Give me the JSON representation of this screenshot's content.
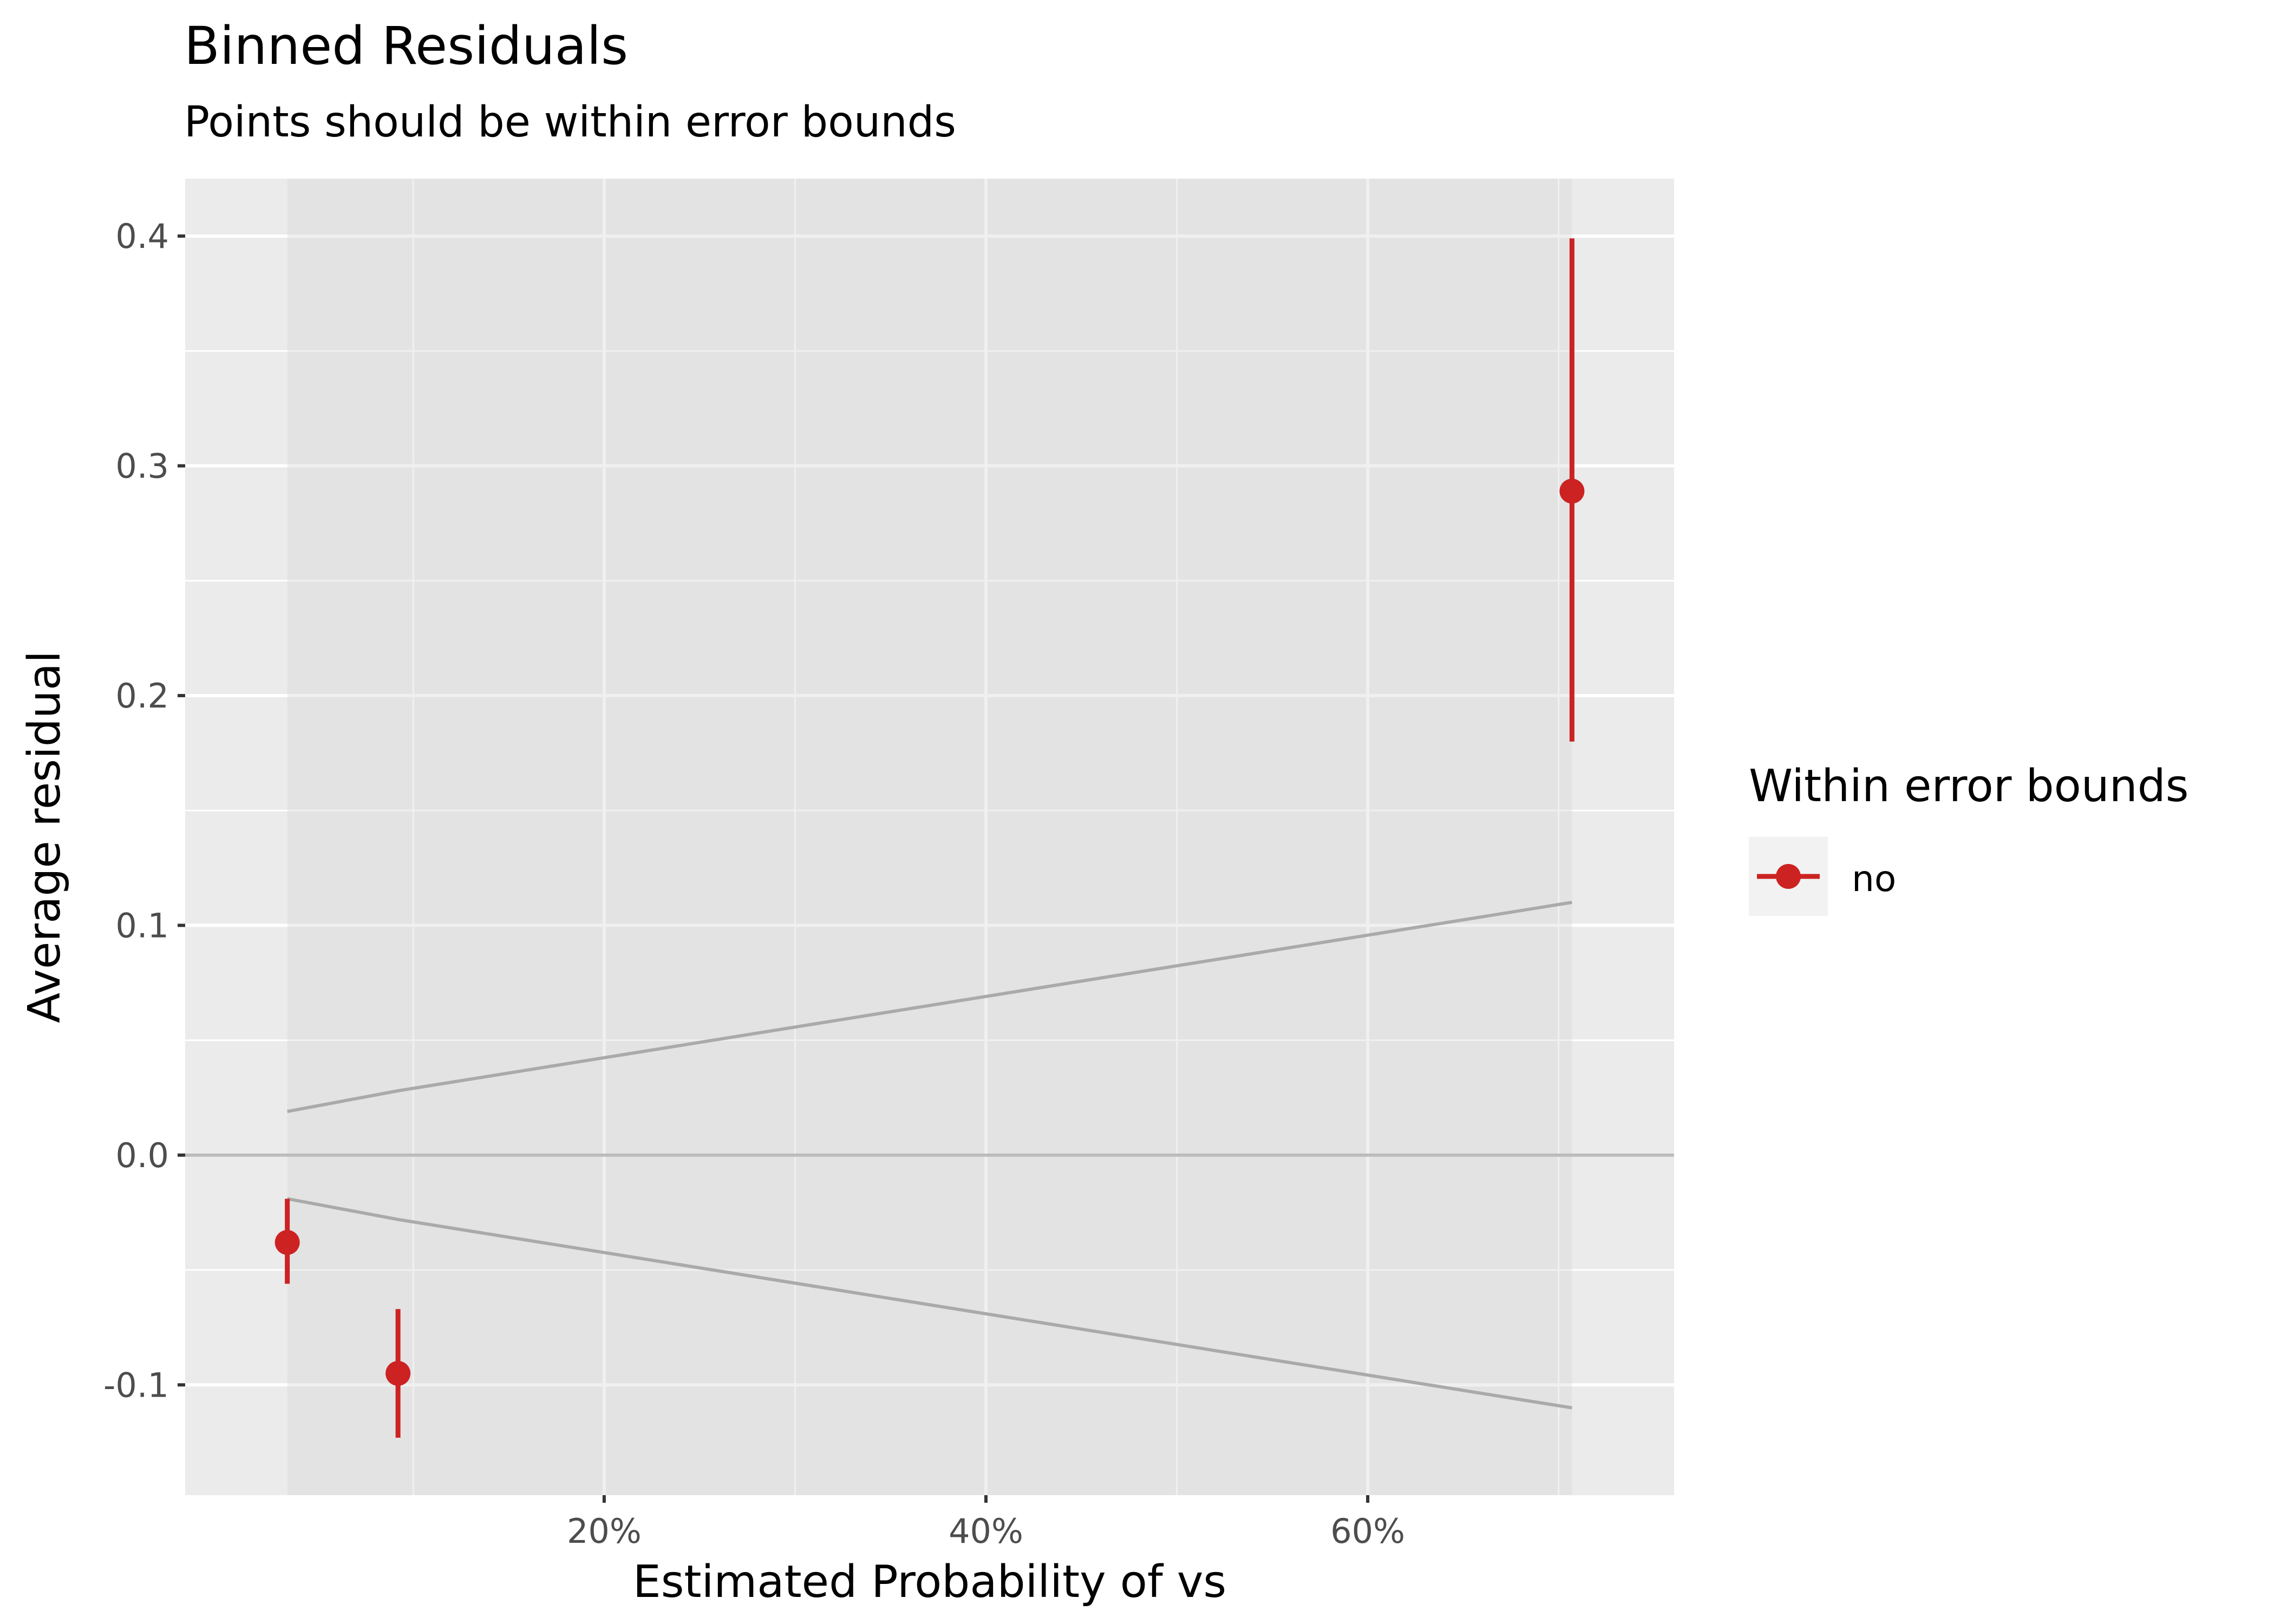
{
  "chart_data": {
    "type": "scatter",
    "title": "Binned Residuals",
    "subtitle": "Points should be within error bounds",
    "xlabel": "Estimated Probability of vs",
    "ylabel": "Average residual",
    "xlim": [
      -0.0195,
      0.7605
    ],
    "ylim": [
      -0.148,
      0.425
    ],
    "x_ticks": [
      0.2,
      0.4,
      0.6
    ],
    "x_tick_labels": [
      "20%",
      "40%",
      "60%"
    ],
    "x_minor_ticks": [
      0.1,
      0.3,
      0.5,
      0.7
    ],
    "y_ticks": [
      -0.1,
      0.0,
      0.1,
      0.2,
      0.3,
      0.4
    ],
    "y_tick_labels": [
      "-0.1",
      "0.0",
      "0.1",
      "0.2",
      "0.3",
      "0.4"
    ],
    "y_minor_ticks": [
      -0.05,
      0.05,
      0.15,
      0.25,
      0.35
    ],
    "grid": true,
    "legend": {
      "title": "Within error bounds",
      "position": "right",
      "entries": [
        "no"
      ]
    },
    "colors": {
      "no": "#cc2222",
      "bounds": "#aaaaaa",
      "zero_line": "#bcbcbcb0",
      "panel": "#ebebeb",
      "ribbon": "#d5d5d5"
    },
    "series": [
      {
        "name": "no",
        "points": [
          {
            "x": 0.034,
            "y": -0.038,
            "ymin": -0.056,
            "ymax": -0.019
          },
          {
            "x": 0.092,
            "y": -0.095,
            "ymin": -0.123,
            "ymax": -0.067
          },
          {
            "x": 0.707,
            "y": 0.289,
            "ymin": 0.18,
            "ymax": 0.399
          }
        ]
      }
    ],
    "error_bounds": {
      "x": [
        0.034,
        0.092,
        0.707
      ],
      "upper": [
        0.019,
        0.028,
        0.11
      ],
      "lower": [
        -0.019,
        -0.028,
        -0.11
      ]
    },
    "reference_line": 0.0
  }
}
